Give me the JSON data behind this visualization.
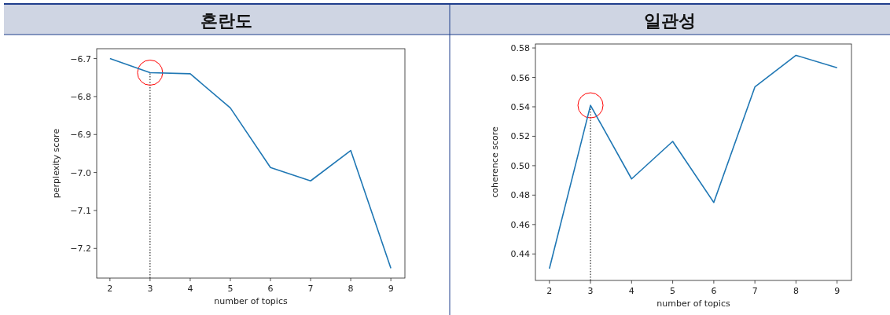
{
  "chart_data": [
    {
      "type": "line",
      "title": "혼란도",
      "xlabel": "number of topics",
      "ylabel": "perplexity score",
      "x": [
        2,
        3,
        4,
        5,
        6,
        7,
        8,
        9
      ],
      "values": [
        -6.7,
        -6.737,
        -6.74,
        -6.83,
        -6.987,
        -7.022,
        -6.942,
        -7.252
      ],
      "color": "#1f77b4",
      "xlim": [
        1.67,
        9.35
      ],
      "ylim": [
        -7.278,
        -6.674
      ],
      "xticks": [
        2,
        3,
        4,
        5,
        6,
        7,
        8,
        9
      ],
      "yticks": [
        {
          "value": -7.2,
          "label": "−7.2"
        },
        {
          "value": -7.1,
          "label": "−7.1"
        },
        {
          "value": -7.0,
          "label": "−7.0"
        },
        {
          "value": -6.9,
          "label": "−6.9"
        },
        {
          "value": -6.8,
          "label": "−6.8"
        },
        {
          "value": -6.7,
          "label": "−6.7"
        }
      ],
      "ref_lines": [
        {
          "axis": "x",
          "value": 3,
          "color": "#000000",
          "line_style": "dotted"
        }
      ]
    },
    {
      "type": "line",
      "title": "일관성",
      "xlabel": "number of topics",
      "ylabel": "coherence score",
      "x": [
        2,
        3,
        4,
        5,
        6,
        7,
        8,
        9
      ],
      "values": [
        0.43,
        0.541,
        0.491,
        0.5165,
        0.475,
        0.5535,
        0.575,
        0.5665
      ],
      "color": "#1f77b4",
      "xlim": [
        1.66,
        9.35
      ],
      "ylim": [
        0.422,
        0.5827
      ],
      "xticks": [
        2,
        3,
        4,
        5,
        6,
        7,
        8,
        9
      ],
      "yticks": [
        {
          "value": 0.44,
          "label": "0.44"
        },
        {
          "value": 0.46,
          "label": "0.46"
        },
        {
          "value": 0.48,
          "label": "0.48"
        },
        {
          "value": 0.5,
          "label": "0.50"
        },
        {
          "value": 0.52,
          "label": "0.52"
        },
        {
          "value": 0.54,
          "label": "0.54"
        },
        {
          "value": 0.56,
          "label": "0.56"
        },
        {
          "value": 0.58,
          "label": "0.58"
        }
      ],
      "ref_lines": [
        {
          "axis": "x",
          "value": 3,
          "color": "#000000",
          "line_style": "dotted"
        }
      ]
    }
  ]
}
